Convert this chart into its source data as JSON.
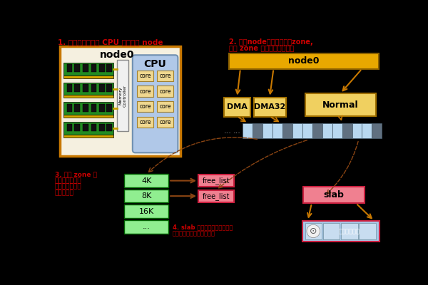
{
  "bg_color": "#000000",
  "title1": "1. 相邻的内存条和 CPU 被划分成 node",
  "title2_line1": "2. 每个node被划分成多个zone,",
  "title2_line2": "每个 zone 下包含很多个页面",
  "title3_line1": "3. 每个 zone 下",
  "title3_line2": "的空闲置页面都",
  "title3_line3": "通过一个伙伴系",
  "title3_line4": "统进行管理",
  "title4_line1": "4. slab 分配器向伙伴系统申请",
  "title4_line2": "连续整页内存存储内核对象",
  "text_color_red": "#cc0000",
  "text_color_white": "#ffffff",
  "node0_box_bg": "#f5f0e0",
  "node0_border": "#c87800",
  "cpu_box_color": "#b0c8e8",
  "cpu_border": "#7090b0",
  "core_box_color": "#f0d890",
  "core_border": "#a08030",
  "memory_bar_color": "#228b22",
  "memory_connector_color": "#c8a000",
  "node0_zone_color": "#e8a800",
  "zone_box_color": "#f0d060",
  "zone_border": "#a07000",
  "page_color_light": "#b8d8f0",
  "page_color_dark": "#607080",
  "buddy_box_color": "#90ee90",
  "buddy_border": "#006400",
  "free_list_color": "#f08090",
  "free_list_border": "#cc2040",
  "slab_color": "#f08090",
  "slab_border": "#cc2040",
  "slab_pages_color": "#a8c8e8",
  "arrow_color": "#c87800",
  "dashed_color": "#8b4513",
  "mc_color": "#f0f0f0",
  "mc_border": "#888888"
}
